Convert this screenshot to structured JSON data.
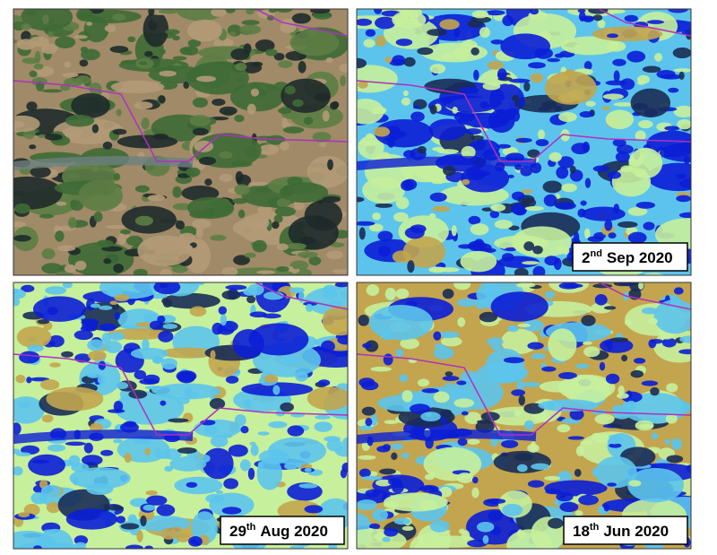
{
  "panels": [
    {
      "day": "2",
      "suffix": "nd",
      "date": "Sep 2020"
    },
    {
      "day": "29",
      "suffix": "th",
      "date": "Aug 2020"
    },
    {
      "day": "18",
      "suffix": "th",
      "date": "Jun 2020"
    }
  ]
}
